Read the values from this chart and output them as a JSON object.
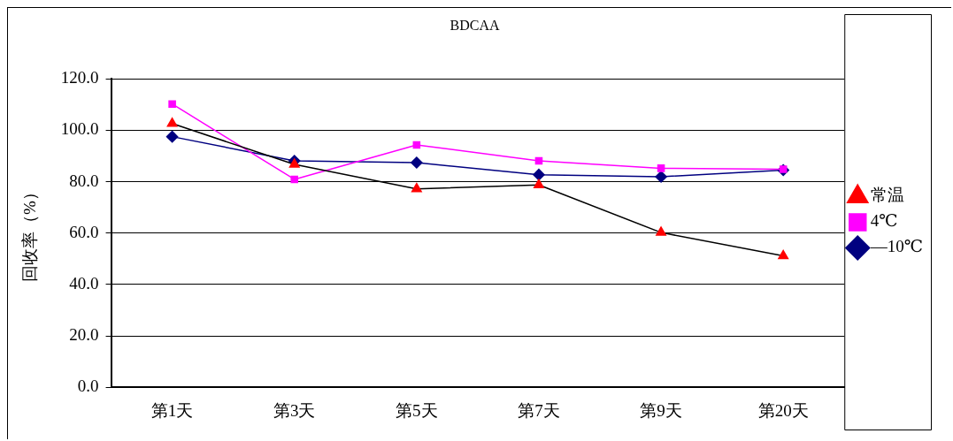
{
  "chart_data": {
    "type": "line",
    "title": "BDCAA",
    "ylabel": "回收率（%）",
    "categories": [
      "第1天",
      "第3天",
      "第5天",
      "第7天",
      "第9天",
      "第20天"
    ],
    "series": [
      {
        "name": "—10℃",
        "color": "#000080",
        "marker": "diamond",
        "values": [
          97.5,
          88.1,
          87.4,
          82.7,
          81.9,
          84.5
        ]
      },
      {
        "name": "4℃",
        "color": "#ff00ff",
        "marker": "square",
        "values": [
          110.2,
          80.9,
          94.3,
          88.1,
          85.2,
          84.8
        ]
      },
      {
        "name": "常温",
        "color": "#000000",
        "colors": [
          "#ff0000",
          "#ff0000",
          "#ff0000",
          "#ff0000",
          "#ff0000",
          "#ff0000"
        ],
        "marker": "triangle",
        "values": [
          102.6,
          86.7,
          77.2,
          78.7,
          60.2,
          51.1
        ]
      }
    ],
    "ylim": [
      0,
      120
    ],
    "yticks": [
      {
        "value": 0,
        "label": "0.0"
      },
      {
        "value": 20,
        "label": "20.0"
      },
      {
        "value": 40,
        "label": "40.0"
      },
      {
        "value": 60,
        "label": "60.0"
      },
      {
        "value": 80,
        "label": "80.0"
      },
      {
        "value": 100,
        "label": "100.0"
      },
      {
        "value": 120,
        "label": "120.0"
      }
    ],
    "grid": "y",
    "legend": "right"
  }
}
